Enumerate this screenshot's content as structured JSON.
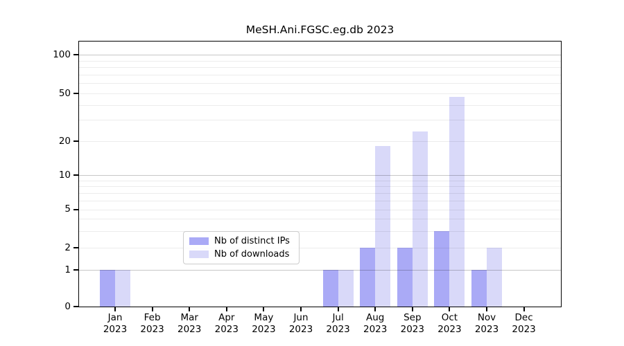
{
  "chart_data": {
    "type": "bar",
    "title": "MeSH.Ani.FGSC.eg.db 2023",
    "categories": [
      "Jan",
      "Feb",
      "Mar",
      "Apr",
      "May",
      "Jun",
      "Jul",
      "Aug",
      "Sep",
      "Oct",
      "Nov",
      "Dec"
    ],
    "x_year_label": "2023",
    "series": [
      {
        "name": "Nb of distinct IPs",
        "color": "#aaaaf6",
        "values": [
          1,
          0,
          0,
          0,
          0,
          0,
          1,
          2,
          2,
          3,
          1,
          0
        ]
      },
      {
        "name": "Nb of downloads",
        "color": "#d9d9f9",
        "values": [
          1,
          0,
          0,
          0,
          0,
          0,
          1,
          18,
          24,
          47,
          2,
          0
        ]
      }
    ],
    "xlabel": "",
    "ylabel": "",
    "y_ticks": [
      "100",
      "50",
      "20",
      "10",
      "5",
      "2",
      "1",
      "0"
    ],
    "y_tick_values": [
      100,
      50,
      20,
      10,
      5,
      2,
      1,
      0
    ],
    "scale": "pseudo-log",
    "ylim": [
      0,
      140
    ],
    "grid": "on",
    "minor_gridlines": [
      2,
      3,
      4,
      5,
      6,
      7,
      8,
      9,
      20,
      30,
      40,
      50,
      60,
      70,
      80,
      90
    ],
    "major_gridlines": [
      1,
      10,
      100
    ],
    "legend_position": "lower center"
  }
}
